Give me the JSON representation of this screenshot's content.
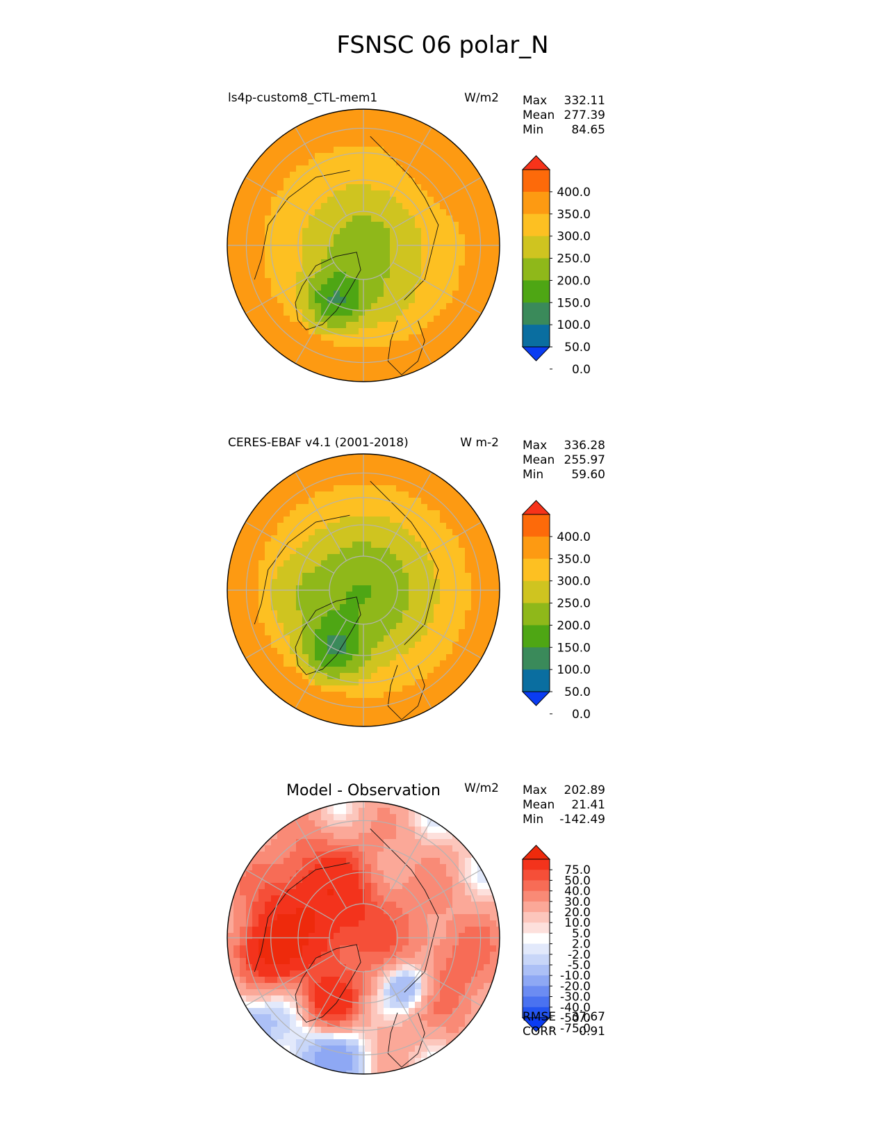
{
  "figure": {
    "title": "FSNSC 06 polar_N"
  },
  "panels": [
    {
      "left_title": "ls4p-custom8_CTL-mem1",
      "right_title": "W/m2",
      "stats": [
        {
          "label": "Max",
          "value": "332.11"
        },
        {
          "label": "Mean",
          "value": "277.39"
        },
        {
          "label": "Min",
          "value": "84.65"
        }
      ],
      "colorbar": {
        "tick_labels": [
          "400.0",
          "350.0",
          "300.0",
          "250.0",
          "200.0",
          "150.0",
          "100.0",
          "50.0",
          "0.0"
        ]
      }
    },
    {
      "left_title": "CERES-EBAF v4.1 (2001-2018)",
      "right_title": "W m-2",
      "stats": [
        {
          "label": "Max",
          "value": "336.28"
        },
        {
          "label": "Mean",
          "value": "255.97"
        },
        {
          "label": "Min",
          "value": "59.60"
        }
      ],
      "colorbar": {
        "tick_labels": [
          "400.0",
          "350.0",
          "300.0",
          "250.0",
          "200.0",
          "150.0",
          "100.0",
          "50.0",
          "0.0"
        ]
      }
    },
    {
      "center_title": "Model - Observation",
      "right_title": "W/m2",
      "stats": [
        {
          "label": "Max",
          "value": "202.89"
        },
        {
          "label": "Mean",
          "value": "21.41"
        },
        {
          "label": "Min",
          "value": "-142.49"
        }
      ],
      "colorbar": {
        "tick_labels": [
          "75.0",
          "50.0",
          "40.0",
          "30.0",
          "20.0",
          "10.0",
          "5.0",
          "2.0",
          "-2.0",
          "-5.0",
          "-10.0",
          "-20.0",
          "-30.0",
          "-40.0",
          "-50.0",
          "-75.0"
        ]
      },
      "metrics": [
        {
          "label": "RMSE",
          "value": "37.67"
        },
        {
          "label": "CORR",
          "value": "0.91"
        }
      ]
    }
  ],
  "chart_data": [
    {
      "type": "heatmap",
      "projection": "north polar stereographic",
      "variable": "FSNSC",
      "units": "W/m2",
      "stats": {
        "max": 332.11,
        "mean": 277.39,
        "min": 84.65
      },
      "levels": [
        0,
        50,
        100,
        150,
        200,
        250,
        300,
        350,
        400
      ],
      "colors": [
        "#0a3cf2",
        "#0a6ea0",
        "#3a8a5a",
        "#4ea614",
        "#8fb81a",
        "#cfc420",
        "#fdc022",
        "#fd9a12",
        "#fd6a0a",
        "#f7331a"
      ],
      "extend": "both",
      "field_summary": {
        "pole_region": 190,
        "greenland": 110,
        "arctic_ocean_ring": 220,
        "subarctic": 275,
        "midlatitude": 310
      }
    },
    {
      "type": "heatmap",
      "projection": "north polar stereographic",
      "variable": "FSNSC",
      "units": "W m-2",
      "stats": {
        "max": 336.28,
        "mean": 255.97,
        "min": 59.6
      },
      "levels": [
        0,
        50,
        100,
        150,
        200,
        250,
        300,
        350,
        400
      ],
      "colors": [
        "#0a3cf2",
        "#0a6ea0",
        "#3a8a5a",
        "#4ea614",
        "#8fb81a",
        "#cfc420",
        "#fdc022",
        "#fd9a12",
        "#fd6a0a",
        "#f7331a"
      ],
      "extend": "both",
      "field_summary": {
        "pole_region": 165,
        "greenland": 100,
        "arctic_ocean_ring": 200,
        "subarctic": 270,
        "midlatitude": 305
      }
    },
    {
      "type": "heatmap",
      "projection": "north polar stereographic",
      "variable": "FSNSC difference",
      "units": "W/m2",
      "stats": {
        "max": 202.89,
        "mean": 21.41,
        "min": -142.49,
        "rmse": 37.67,
        "corr": 0.91
      },
      "levels": [
        -75,
        -50,
        -40,
        -30,
        -20,
        -10,
        -5,
        -2,
        2,
        5,
        10,
        20,
        30,
        40,
        50,
        75
      ],
      "colors": [
        "#0a3cf2",
        "#2455f0",
        "#4a72f0",
        "#6c8cf2",
        "#8ea8f4",
        "#acc0f6",
        "#c8d6f8",
        "#e2e9fb",
        "#ffffff",
        "#fde0dc",
        "#fcc6bc",
        "#fba898",
        "#f98a76",
        "#f76c56",
        "#f54f38",
        "#f3331c",
        "#ee2a0c"
      ],
      "extend": "both",
      "field_summary": {
        "canadian_archipelago": 60,
        "arctic_ocean": 40,
        "greenland_interior": 15,
        "barents_kara": -25,
        "north_atlantic": -3,
        "eurasia": 20
      }
    }
  ]
}
